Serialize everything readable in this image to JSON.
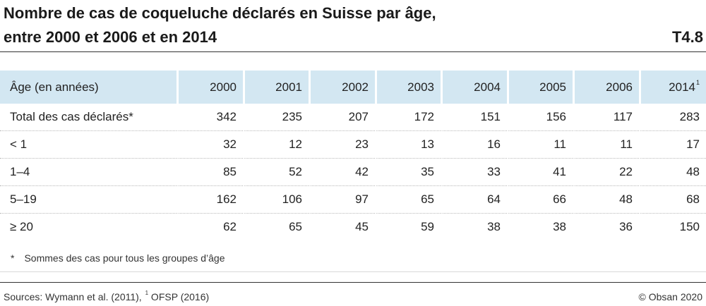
{
  "title": {
    "line1": "Nombre de cas de coqueluche déclarés en Suisse par âge,",
    "line2": "entre 2000 et 2006 et en 2014",
    "code": "T4.8"
  },
  "table": {
    "header": {
      "label": "Âge (en années)",
      "years": [
        "2000",
        "2001",
        "2002",
        "2003",
        "2004",
        "2005",
        "2006",
        "2014"
      ],
      "last_year_note": "1"
    },
    "rows": [
      {
        "label": "Total des cas déclarés*",
        "values": [
          "342",
          "235",
          "207",
          "172",
          "151",
          "156",
          "117",
          "283"
        ]
      },
      {
        "label": "< 1",
        "values": [
          "32",
          "12",
          "23",
          "13",
          "16",
          "11",
          "11",
          "17"
        ]
      },
      {
        "label": "1–4",
        "values": [
          "85",
          "52",
          "42",
          "35",
          "33",
          "41",
          "22",
          "48"
        ]
      },
      {
        "label": "5–19",
        "values": [
          "162",
          "106",
          "97",
          "65",
          "64",
          "66",
          "48",
          "68"
        ]
      },
      {
        "label": "≥ 20",
        "values": [
          "62",
          "65",
          "45",
          "59",
          "38",
          "38",
          "36",
          "150"
        ]
      }
    ]
  },
  "footnote": {
    "marker": "*",
    "text": "Sommes des cas pour tous les groupes d’âge"
  },
  "sources": {
    "prefix": "Sources: Wymann et al. (2011), ",
    "note_marker": "1",
    "suffix": " OFSP (2016)"
  },
  "copyright": "© Obsan 2020",
  "colors": {
    "header_fill": "#d3e7f2",
    "rule": "#333333"
  }
}
